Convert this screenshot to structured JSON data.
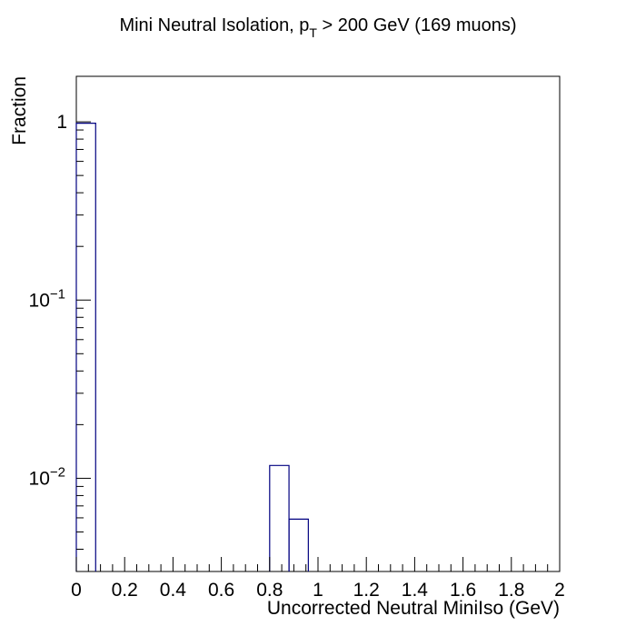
{
  "chart_data": {
    "type": "histogram",
    "title": {
      "prefix": "Mini Neutral Isolation, p",
      "subscript": "T",
      "suffix": " > 200 GeV (169 muons)"
    },
    "xlabel": "Uncorrected Neutral MiniIso (GeV)",
    "ylabel": "Fraction",
    "xlim": [
      0,
      2
    ],
    "ylim": [
      0.003,
      1.8
    ],
    "y_scale": "log",
    "x_tick_labels": [
      "0",
      "0.2",
      "0.4",
      "0.6",
      "0.8",
      "1",
      "1.2",
      "1.4",
      "1.6",
      "1.8",
      "2"
    ],
    "y_tick_labels": [
      {
        "value": 1,
        "base": "1",
        "exp": ""
      },
      {
        "value": 0.1,
        "base": "10",
        "exp": "−1"
      },
      {
        "value": 0.01,
        "base": "10",
        "exp": "−2"
      }
    ],
    "bin_width": 0.08,
    "bins": [
      {
        "x_low": 0.0,
        "x_high": 0.08,
        "value": 0.982
      },
      {
        "x_low": 0.8,
        "x_high": 0.88,
        "value": 0.0118
      },
      {
        "x_low": 0.88,
        "x_high": 0.96,
        "value": 0.0059
      }
    ],
    "line_color": "#000080",
    "grid": false,
    "legend": "none"
  }
}
